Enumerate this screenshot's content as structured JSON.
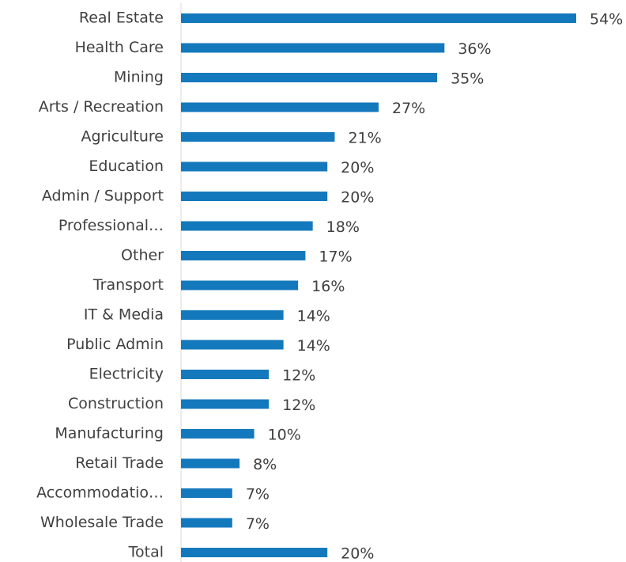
{
  "chart_data": {
    "type": "bar",
    "orientation": "horizontal",
    "categories": [
      "Real Estate",
      "Health Care",
      "Mining",
      "Arts / Recreation",
      "Agriculture",
      "Education",
      "Admin / Support",
      "Professional…",
      "Other",
      "Transport",
      "IT & Media",
      "Public Admin",
      "Electricity",
      "Construction",
      "Manufacturing",
      "Retail Trade",
      "Accommodatio…",
      "Wholesale Trade",
      "Total"
    ],
    "values": [
      54,
      36,
      35,
      27,
      21,
      20,
      20,
      18,
      17,
      16,
      14,
      14,
      12,
      12,
      10,
      8,
      7,
      7,
      20
    ],
    "value_labels": [
      "54%",
      "36%",
      "35%",
      "27%",
      "21%",
      "20%",
      "20%",
      "18%",
      "17%",
      "16%",
      "14%",
      "14%",
      "12%",
      "12%",
      "10%",
      "8%",
      "7%",
      "7%",
      "20%"
    ],
    "color": "#1479bc"
  }
}
